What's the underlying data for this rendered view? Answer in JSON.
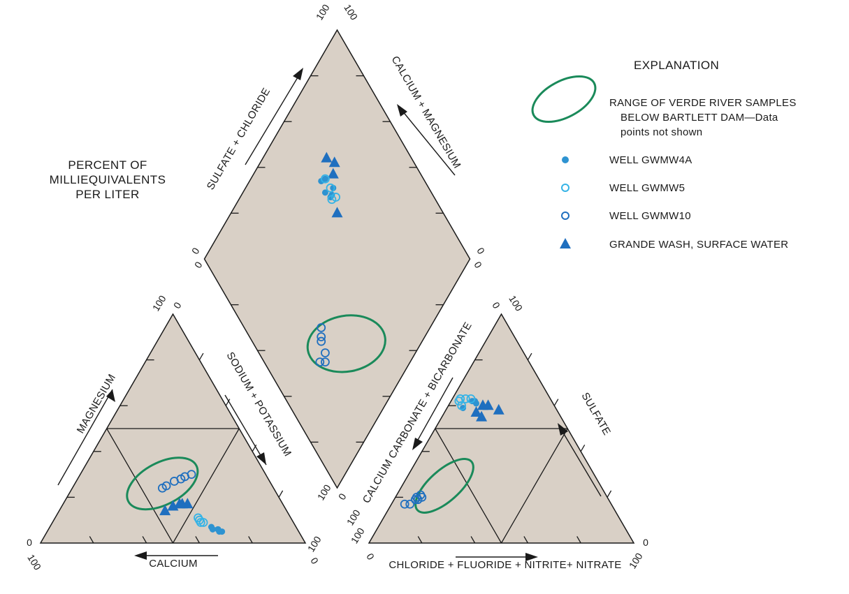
{
  "chart_data": {
    "type": "scatter",
    "subtype": "piper-diagram",
    "side_label": [
      "PERCENT OF",
      "MILLIEQUIVALENTS",
      "PER LITER"
    ],
    "axes": {
      "cation_top": "MAGNESIUM",
      "cation_right": "SODIUM + POTASSIUM",
      "cation_bottom": "CALCIUM",
      "anion_left": "CALCIUM CARBONATE + BICARBONATE",
      "anion_right": "SULFATE",
      "anion_bottom": "CHLORIDE + FLUORIDE + NITRITE+ NITRATE",
      "diamond_left": "SULFATE + CHLORIDE",
      "diamond_right": "CALCIUM + MAGNESIUM"
    },
    "tick_labels": {
      "zero": "0",
      "hundred": "100"
    },
    "colors": {
      "fill": "#d9d0c6",
      "outline": "#1a1a1a",
      "ellipse": "#1a8a5a",
      "gwmw4a": "#2e93d1",
      "gwmw5": "#35b3e6",
      "gwmw10": "#1f6fbf",
      "surface": "#1f6fbf"
    },
    "legend": {
      "title": "EXPLANATION",
      "placement": "top-right",
      "items": [
        {
          "key": "range",
          "marker": "ellipse",
          "lines": [
            "RANGE OF VERDE RIVER SAMPLES",
            "BELOW BARTLETT DAM—Data",
            "points not shown"
          ]
        },
        {
          "key": "gwmw4a",
          "marker": "filled-circle",
          "lines": [
            "WELL GWMW4A"
          ]
        },
        {
          "key": "gwmw5",
          "marker": "open-circle",
          "lines": [
            "WELL GWMW5"
          ]
        },
        {
          "key": "gwmw10",
          "marker": "open-circle",
          "lines": [
            "WELL GWMW10"
          ]
        },
        {
          "key": "surface",
          "marker": "triangle",
          "lines": [
            "GRANDE WASH, SURFACE WATER"
          ]
        }
      ]
    },
    "series": [
      {
        "key": "gwmw4a",
        "name": "WELL GWMW4A",
        "marker": "filled-circle",
        "cation": [
          [
            64,
            6
          ],
          [
            66,
            5
          ],
          [
            61,
            7
          ],
          [
            62,
            6
          ],
          [
            64,
            6
          ],
          [
            65,
            5
          ]
        ],
        "anion": [
          [
            8,
            62
          ],
          [
            6,
            59
          ],
          [
            10,
            61
          ],
          [
            9,
            62
          ]
        ],
        "diamond": [
          [
            61,
            73
          ],
          [
            60,
            69
          ],
          [
            61,
            66
          ],
          [
            62,
            66
          ],
          [
            64,
            67
          ],
          [
            63,
            72
          ]
        ]
      },
      {
        "key": "gwmw5",
        "name": "WELL GWMW5",
        "marker": "open-circle",
        "cation": [
          [
            57,
            9
          ],
          [
            54,
            11
          ],
          [
            56,
            9
          ],
          [
            55,
            10
          ]
        ],
        "anion": [
          [
            3,
            62
          ],
          [
            5,
            60
          ],
          [
            3,
            63
          ],
          [
            5,
            63
          ],
          [
            7,
            63
          ]
        ],
        "diamond": [
          [
            63,
            72
          ],
          [
            63,
            68
          ],
          [
            61,
            65
          ],
          [
            63,
            64
          ]
        ]
      },
      {
        "key": "gwmw10",
        "name": "WELL GWMW10",
        "marker": "open-circle",
        "cation": [
          [
            42,
            30
          ],
          [
            40,
            29
          ],
          [
            39,
            28
          ],
          [
            37,
            27
          ],
          [
            35,
            25
          ],
          [
            34,
            24
          ]
        ],
        "anion": [
          [
            7,
            17
          ],
          [
            8,
            19
          ],
          [
            8,
            20
          ],
          [
            9,
            21
          ],
          [
            10,
            20
          ],
          [
            5,
            17
          ],
          [
            9,
            19
          ]
        ],
        "diamond": [
          [
            29,
            41
          ],
          [
            27,
            39
          ],
          [
            26,
            38
          ],
          [
            25,
            34
          ],
          [
            23,
            32
          ],
          [
            21,
            34
          ]
        ]
      },
      {
        "key": "surface",
        "name": "GRANDE WASH, SURFACE WATER",
        "marker": "triangle",
        "cation": [
          [
            47,
            17
          ],
          [
            45,
            17
          ],
          [
            44,
            17
          ],
          [
            42,
            16
          ],
          [
            40,
            14
          ]
        ],
        "anion": [
          [
            15,
            60
          ],
          [
            20,
            58
          ],
          [
            15,
            55
          ],
          [
            12,
            57
          ],
          [
            13,
            60
          ]
        ],
        "diamond": [
          [
            68,
            76
          ],
          [
            70,
            72
          ],
          [
            67,
            70
          ],
          [
            60,
            60
          ]
        ]
      }
    ],
    "verde_range": {
      "cation": {
        "center": [
          33,
          26
        ],
        "semi_axes": [
          55,
          30
        ],
        "rotation_deg": -28
      },
      "anion": {
        "center": [
          16,
          25
        ],
        "semi_axes": [
          52,
          22
        ],
        "rotation_deg": -42
      },
      "diamond": {
        "center": [
          35,
          28
        ],
        "semi_axes": [
          56,
          40
        ],
        "rotation_deg": -10
      }
    }
  }
}
